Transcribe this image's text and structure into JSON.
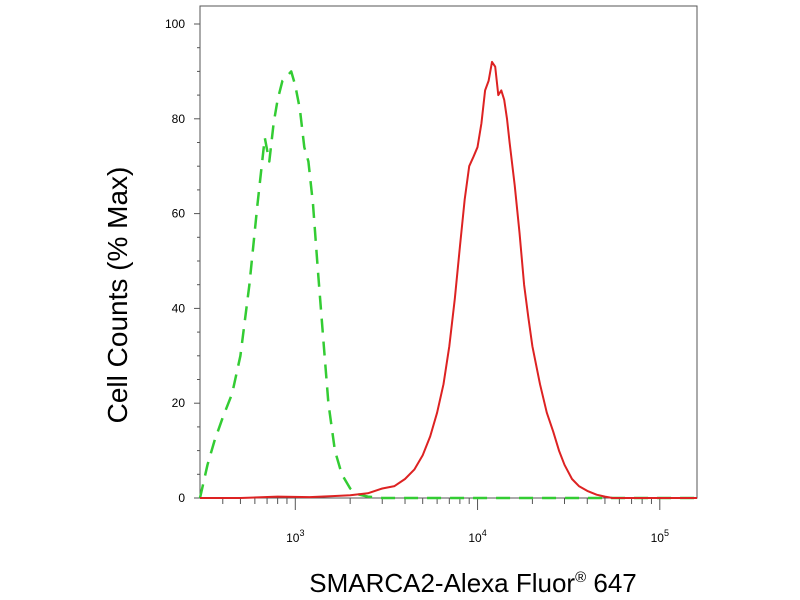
{
  "chart_data": {
    "type": "line",
    "xlabel": {
      "text": "SMARCA2-Alexa Fluor",
      "superscript": "®",
      "suffix": " 647"
    },
    "ylabel": "Cell Counts (% Max)",
    "x_scale": "log",
    "xlim": [
      300,
      160000
    ],
    "ylim": [
      0,
      100
    ],
    "x_ticks": [
      {
        "value": 1000,
        "base": "10",
        "exp": "3"
      },
      {
        "value": 10000,
        "base": "10",
        "exp": "4"
      },
      {
        "value": 100000,
        "base": "10",
        "exp": "5"
      }
    ],
    "y_ticks": [
      0,
      20,
      40,
      60,
      80,
      100
    ],
    "grid": false,
    "legend": "none",
    "series": [
      {
        "style": "dashed",
        "color": "#33cc33",
        "x": [
          300,
          330,
          360,
          400,
          450,
          500,
          560,
          620,
          680,
          720,
          760,
          800,
          850,
          900,
          950,
          1000,
          1060,
          1120,
          1180,
          1250,
          1330,
          1420,
          1520,
          1650,
          1800,
          2000,
          2200,
          2500,
          2700,
          3000,
          5000,
          10000,
          20000,
          50000,
          160000
        ],
        "y": [
          0,
          7,
          12,
          17,
          22,
          30,
          45,
          62,
          76,
          71,
          79,
          84,
          88,
          89,
          90,
          87,
          82,
          74,
          71,
          62,
          48,
          34,
          20,
          10,
          5,
          2,
          0.8,
          0.3,
          0.2,
          0,
          0,
          0,
          0,
          0,
          0
        ]
      },
      {
        "style": "solid",
        "color": "#dd2222",
        "x": [
          300,
          500,
          800,
          1200,
          1600,
          2000,
          2500,
          3000,
          3500,
          4000,
          4500,
          5000,
          5500,
          6000,
          6500,
          7000,
          7500,
          8000,
          8500,
          9000,
          9500,
          10000,
          10500,
          11000,
          11500,
          12000,
          12500,
          13000,
          13500,
          14000,
          14500,
          15000,
          16000,
          17000,
          18000,
          19000,
          20000,
          22000,
          24000,
          26000,
          28000,
          30000,
          33000,
          36000,
          40000,
          45000,
          50000,
          55000,
          60000,
          80000,
          100000,
          160000
        ],
        "y": [
          0,
          0,
          0.3,
          0.2,
          0.4,
          0.6,
          1,
          2,
          2.5,
          4,
          6,
          9,
          13,
          18,
          24,
          32,
          42,
          53,
          63,
          70,
          72,
          74,
          79,
          86,
          88,
          92,
          91,
          85,
          86,
          84,
          80,
          75,
          66,
          56,
          45,
          38,
          32,
          24,
          18,
          14,
          10,
          7,
          4,
          2.5,
          1.5,
          0.7,
          0.3,
          0,
          0,
          0,
          0,
          0
        ]
      }
    ]
  }
}
